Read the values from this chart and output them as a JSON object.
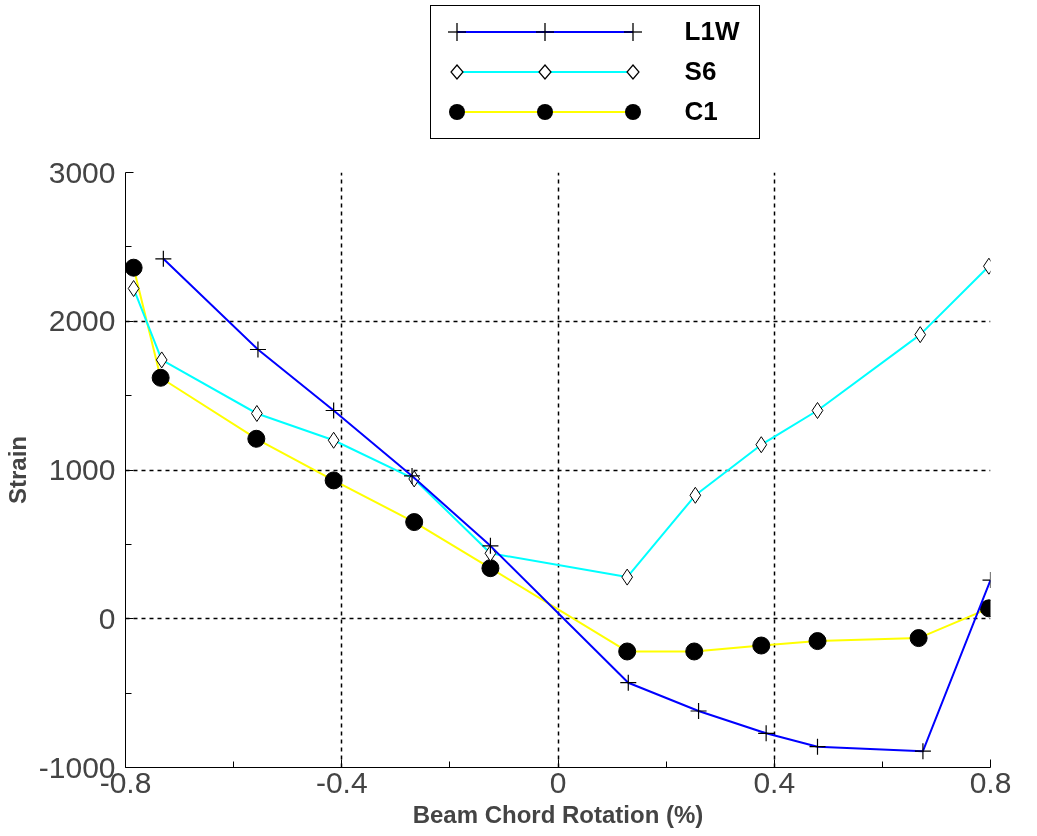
{
  "chart_data": {
    "type": "line",
    "xlabel": "Beam Chord Rotation (%)",
    "ylabel": "Strain",
    "xlim": [
      -0.8,
      0.8
    ],
    "ylim": [
      -1000,
      3000
    ],
    "xticks": [
      -0.8,
      {
        "value": -0.6,
        "label": null
      },
      -0.4,
      {
        "value": -0.2,
        "label": null
      },
      0,
      {
        "value": 0.2,
        "label": null
      },
      0.4,
      {
        "value": 0.6,
        "label": null
      },
      0.8
    ],
    "yticks": [
      -1000,
      {
        "value": -500,
        "label": null
      },
      0,
      {
        "value": 500,
        "label": null
      },
      1000,
      {
        "value": 1500,
        "label": null
      },
      2000,
      {
        "value": 2500,
        "label": null
      },
      3000
    ],
    "grid": true,
    "legend": "top",
    "series": [
      {
        "name": "L1W",
        "color": "#0000ff",
        "marker": "cross",
        "x": [
          -0.73,
          -0.555,
          -0.415,
          -0.27,
          -0.125,
          0.13,
          0.26,
          0.385,
          0.48,
          0.675,
          0.8
        ],
        "values": [
          2420,
          1810,
          1400,
          960,
          490,
          -430,
          -620,
          -770,
          -860,
          -890,
          260
        ]
      },
      {
        "name": "S6",
        "color": "#00ffff",
        "marker": "diamond",
        "x": [
          -0.785,
          -0.733,
          -0.557,
          -0.415,
          -0.266,
          -0.125,
          0.128,
          0.254,
          0.376,
          0.48,
          0.67,
          0.797
        ],
        "values": [
          2220,
          1740,
          1380,
          1200,
          940,
          440,
          280,
          830,
          1170,
          1400,
          1910,
          2370
        ]
      },
      {
        "name": "C1",
        "color": "#ffff00",
        "marker": "circle",
        "x": [
          -0.785,
          -0.735,
          -0.558,
          -0.415,
          -0.266,
          -0.125,
          0.128,
          0.252,
          0.376,
          0.48,
          0.667,
          0.797
        ],
        "values": [
          2360,
          1620,
          1210,
          930,
          650,
          340,
          -220,
          -220,
          -180,
          -150,
          -130,
          70
        ]
      }
    ]
  }
}
